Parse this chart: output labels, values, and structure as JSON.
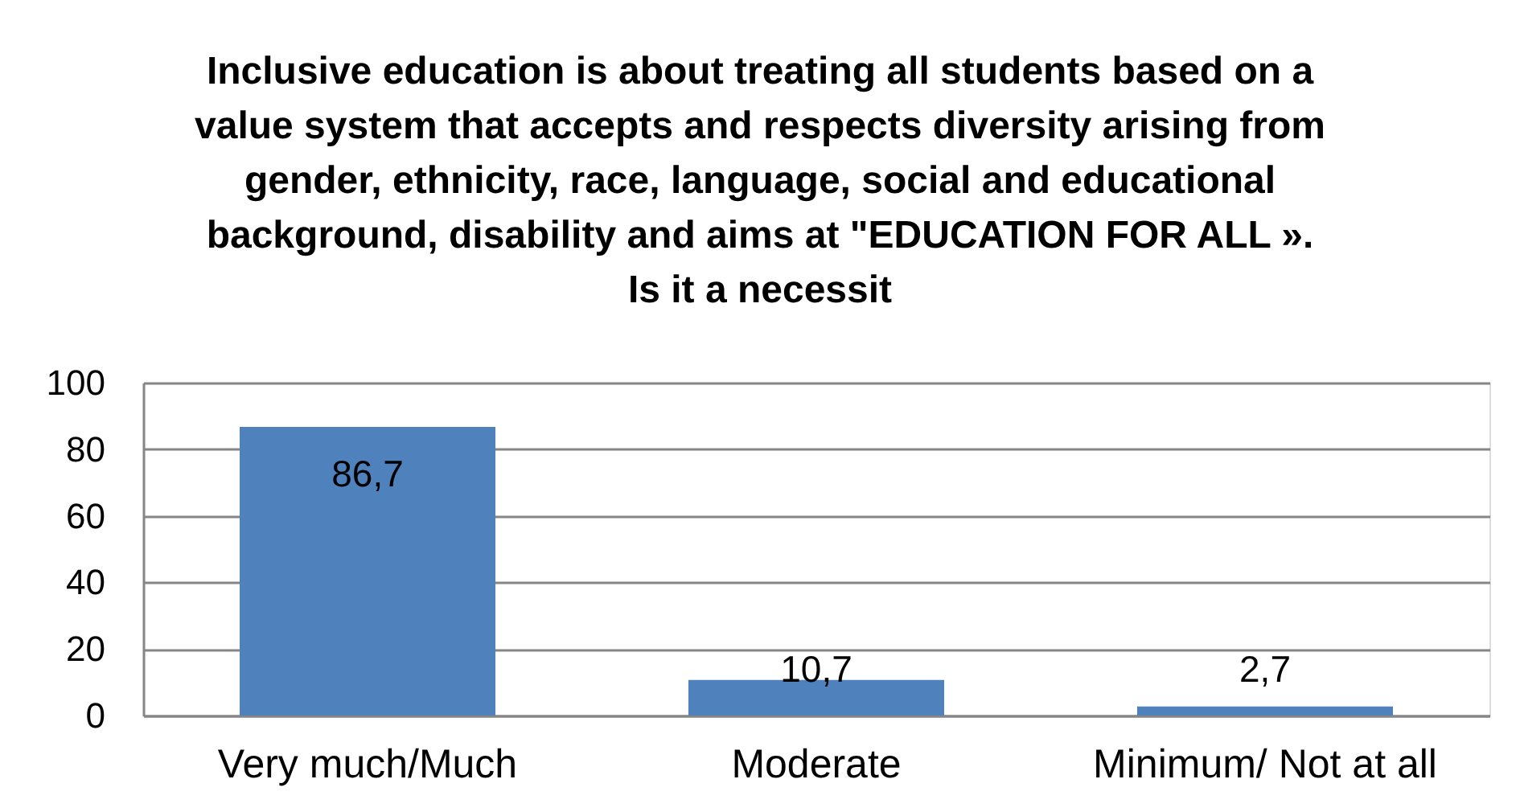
{
  "chart_data": {
    "type": "bar",
    "title": "Inclusive education is about treating all students based on a value system that accepts and respects diversity arising from gender, ethnicity, race, language, social and educational background, disability and aims at \"EDUCATION FOR ALL ».\nIs it a necessit",
    "categories": [
      "Very much/Much",
      "Moderate",
      "Minimum/ Not at all"
    ],
    "values": [
      86.7,
      10.7,
      2.7
    ],
    "value_labels": [
      "86,7",
      "10,7",
      "2,7"
    ],
    "color": "#4f81bd",
    "ylim": [
      0,
      100
    ],
    "yticks": [
      0,
      20,
      40,
      60,
      80,
      100
    ],
    "grid": "y"
  }
}
